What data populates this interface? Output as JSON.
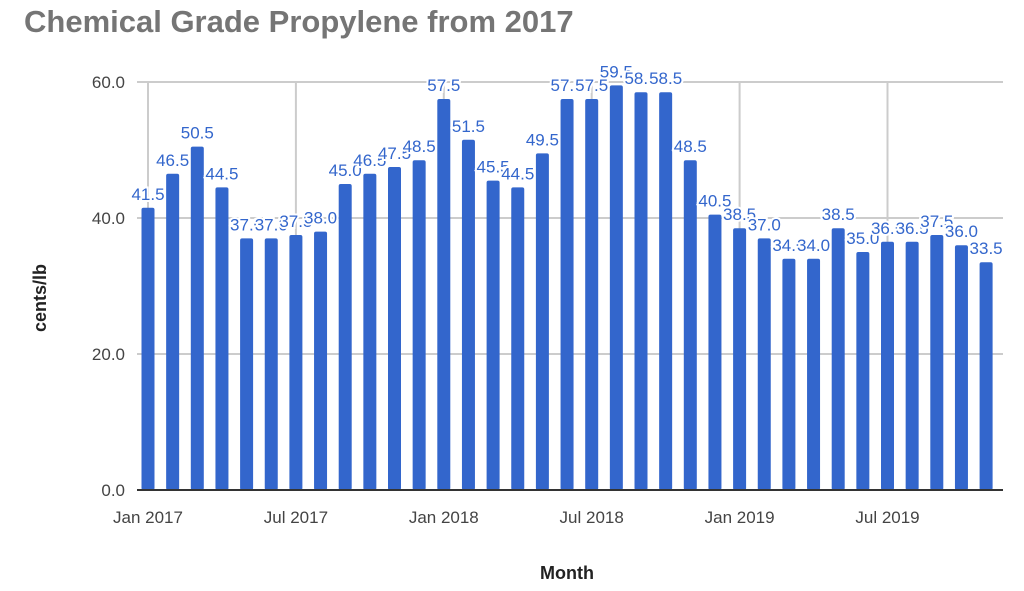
{
  "chart_data": {
    "type": "bar",
    "title": "Chemical Grade Propylene from 2017",
    "xlabel": "Month",
    "ylabel": "cents/lb",
    "ylim": [
      0,
      60
    ],
    "y_ticks": [
      "0.0",
      "20.0",
      "40.0",
      "60.0"
    ],
    "x_ticks": [
      "Jan 2017",
      "Jul 2017",
      "Jan 2018",
      "Jul 2018",
      "Jan 2019",
      "Jul 2019"
    ],
    "grid": true,
    "bar_color": "#3366cc",
    "categories": [
      "Jan 2017",
      "Feb 2017",
      "Mar 2017",
      "Apr 2017",
      "May 2017",
      "Jun 2017",
      "Jul 2017",
      "Aug 2017",
      "Sep 2017",
      "Oct 2017",
      "Nov 2017",
      "Dec 2017",
      "Jan 2018",
      "Feb 2018",
      "Mar 2018",
      "Apr 2018",
      "May 2018",
      "Jun 2018",
      "Jul 2018",
      "Aug 2018",
      "Sep 2018",
      "Oct 2018",
      "Nov 2018",
      "Dec 2018",
      "Jan 2019",
      "Feb 2019",
      "Mar 2019",
      "Apr 2019",
      "May 2019",
      "Jun 2019",
      "Jul 2019",
      "Aug 2019",
      "Sep 2019",
      "Oct 2019",
      "Nov 2019"
    ],
    "values": [
      41.5,
      46.5,
      50.5,
      44.5,
      37.0,
      37.0,
      37.5,
      38.0,
      45.0,
      46.5,
      47.5,
      48.5,
      57.5,
      51.5,
      45.5,
      44.5,
      49.5,
      57.5,
      57.5,
      59.5,
      58.5,
      58.5,
      48.5,
      40.5,
      38.5,
      37.0,
      34.0,
      34.0,
      38.5,
      35.0,
      36.5,
      36.5,
      37.5,
      36.0,
      33.5
    ]
  }
}
